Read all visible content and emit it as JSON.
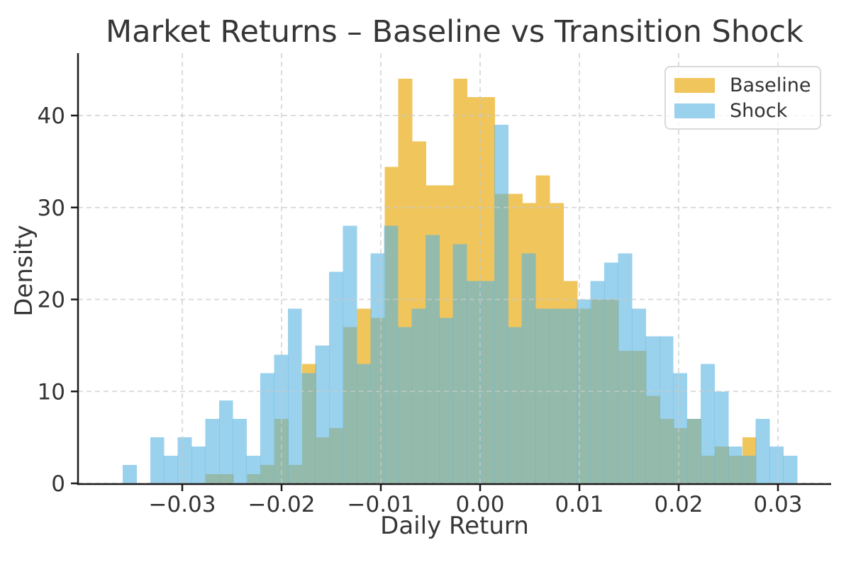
{
  "figure": {
    "title": "Market Returns – Baseline vs Transition Shock"
  },
  "chart_data": {
    "type": "histogram",
    "title": "Market Returns – Baseline vs Transition Shock",
    "xlabel": "Daily Return",
    "ylabel": "Density",
    "xlim": [
      -0.0405,
      0.0354
    ],
    "ylim": [
      0,
      46.8
    ],
    "xticks": [
      -0.03,
      -0.02,
      -0.01,
      0.0,
      0.01,
      0.02,
      0.03
    ],
    "xtick_labels": [
      "−0.03",
      "−0.02",
      "−0.01",
      "0.00",
      "0.01",
      "0.02",
      "0.03"
    ],
    "yticks": [
      0,
      10,
      20,
      30,
      40
    ],
    "ytick_labels": [
      "0",
      "10",
      "20",
      "30",
      "40"
    ],
    "grid": {
      "visible": true,
      "linestyle": "dashed",
      "color": "#c9c9c9"
    },
    "axis_color": "#1a1a1a",
    "tick_label_color": "#333333",
    "legend": {
      "position": "upper right",
      "entries": [
        "Baseline",
        "Shock"
      ]
    },
    "series": [
      {
        "name": "Baseline",
        "color": "#f0c65c",
        "bin_start": -0.02764,
        "bin_width": 0.001386,
        "heights": [
          1,
          1,
          0,
          1,
          2,
          7,
          2,
          13,
          5,
          6,
          17,
          19,
          18,
          34.4,
          44,
          37.2,
          32.4,
          32.4,
          44,
          42,
          42,
          31.5,
          31.5,
          30.5,
          33.5,
          30.5,
          22,
          19,
          20,
          20,
          14.4,
          14.4,
          9.5,
          7,
          6,
          7,
          3,
          4,
          3,
          5
        ]
      },
      {
        "name": "Shock",
        "color": "#9ad1ed",
        "overlay_fill": "rgba(87,178,225,0.6)",
        "bin_start": -0.036,
        "bin_width": 0.001386,
        "heights": [
          2,
          0,
          5,
          3,
          5,
          4,
          7,
          9,
          7,
          3,
          12,
          14,
          19,
          12,
          15,
          23,
          28,
          13,
          25,
          28,
          17,
          19,
          27,
          18,
          26,
          22,
          22,
          39,
          17,
          25,
          19,
          19,
          19,
          20,
          22,
          24,
          25,
          19,
          16,
          16,
          12,
          7,
          13,
          10,
          4,
          3,
          7,
          4,
          3
        ]
      }
    ]
  }
}
